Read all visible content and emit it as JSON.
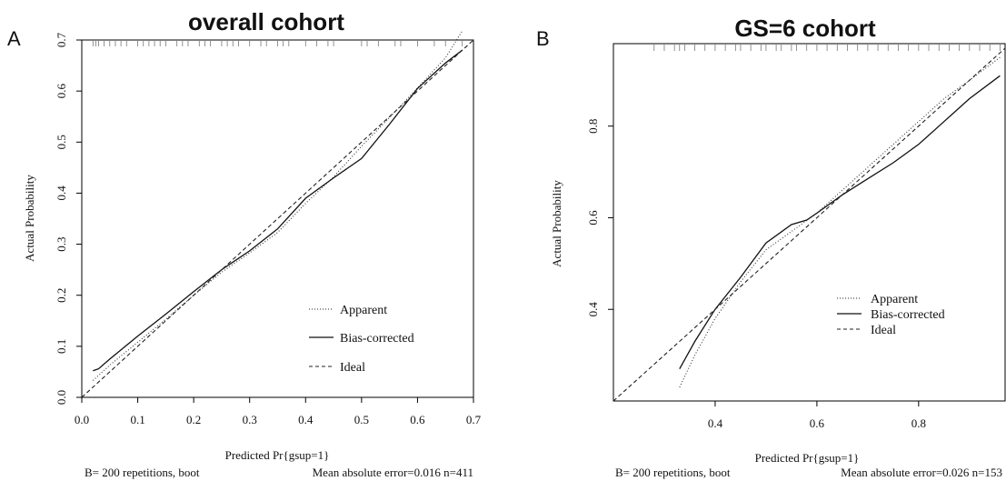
{
  "chart_data": [
    {
      "type": "line",
      "panel_label": "A",
      "title": "overall cohort",
      "xlabel": "Predicted Pr{gsup=1}",
      "ylabel": "Actual Probability",
      "xlim": [
        0.0,
        0.7
      ],
      "ylim": [
        0.0,
        0.7
      ],
      "x_ticks": [
        0.0,
        0.1,
        0.2,
        0.3,
        0.4,
        0.5,
        0.6,
        0.7
      ],
      "y_ticks": [
        0.0,
        0.1,
        0.2,
        0.3,
        0.4,
        0.5,
        0.6,
        0.7
      ],
      "x_tick_labels": [
        "0.0",
        "0.1",
        "0.2",
        "0.3",
        "0.4",
        "0.5",
        "0.6",
        "0.7"
      ],
      "y_tick_labels": [
        "0.0",
        "0.1",
        "0.2",
        "0.3",
        "0.4",
        "0.5",
        "0.6",
        "0.7"
      ],
      "footer_left": "B= 200 repetitions, boot",
      "footer_right": "Mean absolute error=0.016 n=411",
      "legend_position": "bottom-right",
      "series": [
        {
          "name": "Apparent",
          "style": "dotted",
          "x": [
            0.02,
            0.05,
            0.1,
            0.15,
            0.2,
            0.25,
            0.3,
            0.35,
            0.4,
            0.45,
            0.5,
            0.55,
            0.6,
            0.65,
            0.68
          ],
          "y": [
            0.033,
            0.063,
            0.108,
            0.153,
            0.2,
            0.245,
            0.283,
            0.323,
            0.38,
            0.432,
            0.492,
            0.548,
            0.606,
            0.665,
            0.718
          ]
        },
        {
          "name": "Bias-corrected",
          "style": "solid",
          "x": [
            0.02,
            0.03,
            0.05,
            0.1,
            0.15,
            0.2,
            0.25,
            0.3,
            0.35,
            0.4,
            0.45,
            0.5,
            0.55,
            0.6,
            0.65,
            0.68
          ],
          "y": [
            0.052,
            0.056,
            0.075,
            0.12,
            0.163,
            0.207,
            0.25,
            0.287,
            0.33,
            0.39,
            0.43,
            0.468,
            0.535,
            0.605,
            0.655,
            0.68
          ]
        },
        {
          "name": "Ideal",
          "style": "dashed",
          "x": [
            0.0,
            0.7
          ],
          "y": [
            0.0,
            0.7
          ]
        }
      ],
      "rug_x": [
        0.02,
        0.025,
        0.03,
        0.04,
        0.05,
        0.06,
        0.07,
        0.08,
        0.1,
        0.11,
        0.12,
        0.13,
        0.14,
        0.15,
        0.17,
        0.18,
        0.19,
        0.21,
        0.22,
        0.23,
        0.25,
        0.26,
        0.27,
        0.28,
        0.3,
        0.32,
        0.33,
        0.35,
        0.36,
        0.37,
        0.4,
        0.42,
        0.44,
        0.45,
        0.5,
        0.51,
        0.53,
        0.56,
        0.57,
        0.6,
        0.63,
        0.65,
        0.68
      ]
    },
    {
      "type": "line",
      "panel_label": "B",
      "title": "GS=6 cohort",
      "xlabel": "Predicted Pr{gsup=1}",
      "ylabel": "Actual Probability",
      "xlim": [
        0.2,
        0.97
      ],
      "ylim": [
        0.2,
        0.98
      ],
      "x_ticks": [
        0.4,
        0.6,
        0.8
      ],
      "y_ticks": [
        0.4,
        0.6,
        0.8
      ],
      "x_tick_labels": [
        "0.4",
        "0.6",
        "0.8"
      ],
      "y_tick_labels": [
        "0.4",
        "0.6",
        "0.8"
      ],
      "footer_left": "B= 200 repetitions, boot",
      "footer_right": "Mean absolute error=0.026 n=153",
      "legend_position": "bottom-right",
      "series": [
        {
          "name": "Apparent",
          "style": "dotted",
          "x": [
            0.33,
            0.36,
            0.4,
            0.45,
            0.5,
            0.55,
            0.6,
            0.65,
            0.7,
            0.75,
            0.8,
            0.85,
            0.9,
            0.96
          ],
          "y": [
            0.23,
            0.3,
            0.38,
            0.46,
            0.53,
            0.57,
            0.61,
            0.66,
            0.71,
            0.76,
            0.81,
            0.86,
            0.9,
            0.95
          ]
        },
        {
          "name": "Bias-corrected",
          "style": "solid",
          "x": [
            0.33,
            0.36,
            0.4,
            0.45,
            0.5,
            0.55,
            0.58,
            0.6,
            0.65,
            0.7,
            0.75,
            0.8,
            0.85,
            0.9,
            0.96
          ],
          "y": [
            0.27,
            0.33,
            0.4,
            0.47,
            0.545,
            0.585,
            0.595,
            0.61,
            0.65,
            0.685,
            0.72,
            0.76,
            0.81,
            0.86,
            0.91
          ]
        },
        {
          "name": "Ideal",
          "style": "dashed",
          "x": [
            0.2,
            0.97
          ],
          "y": [
            0.2,
            0.97
          ]
        }
      ],
      "rug_x": [
        0.28,
        0.3,
        0.32,
        0.33,
        0.34,
        0.36,
        0.38,
        0.4,
        0.42,
        0.44,
        0.45,
        0.47,
        0.49,
        0.5,
        0.52,
        0.53,
        0.55,
        0.56,
        0.58,
        0.6,
        0.62,
        0.64,
        0.66,
        0.68,
        0.7,
        0.72,
        0.74,
        0.76,
        0.78,
        0.8,
        0.82,
        0.84,
        0.86,
        0.88,
        0.9,
        0.92,
        0.94,
        0.96
      ]
    }
  ]
}
